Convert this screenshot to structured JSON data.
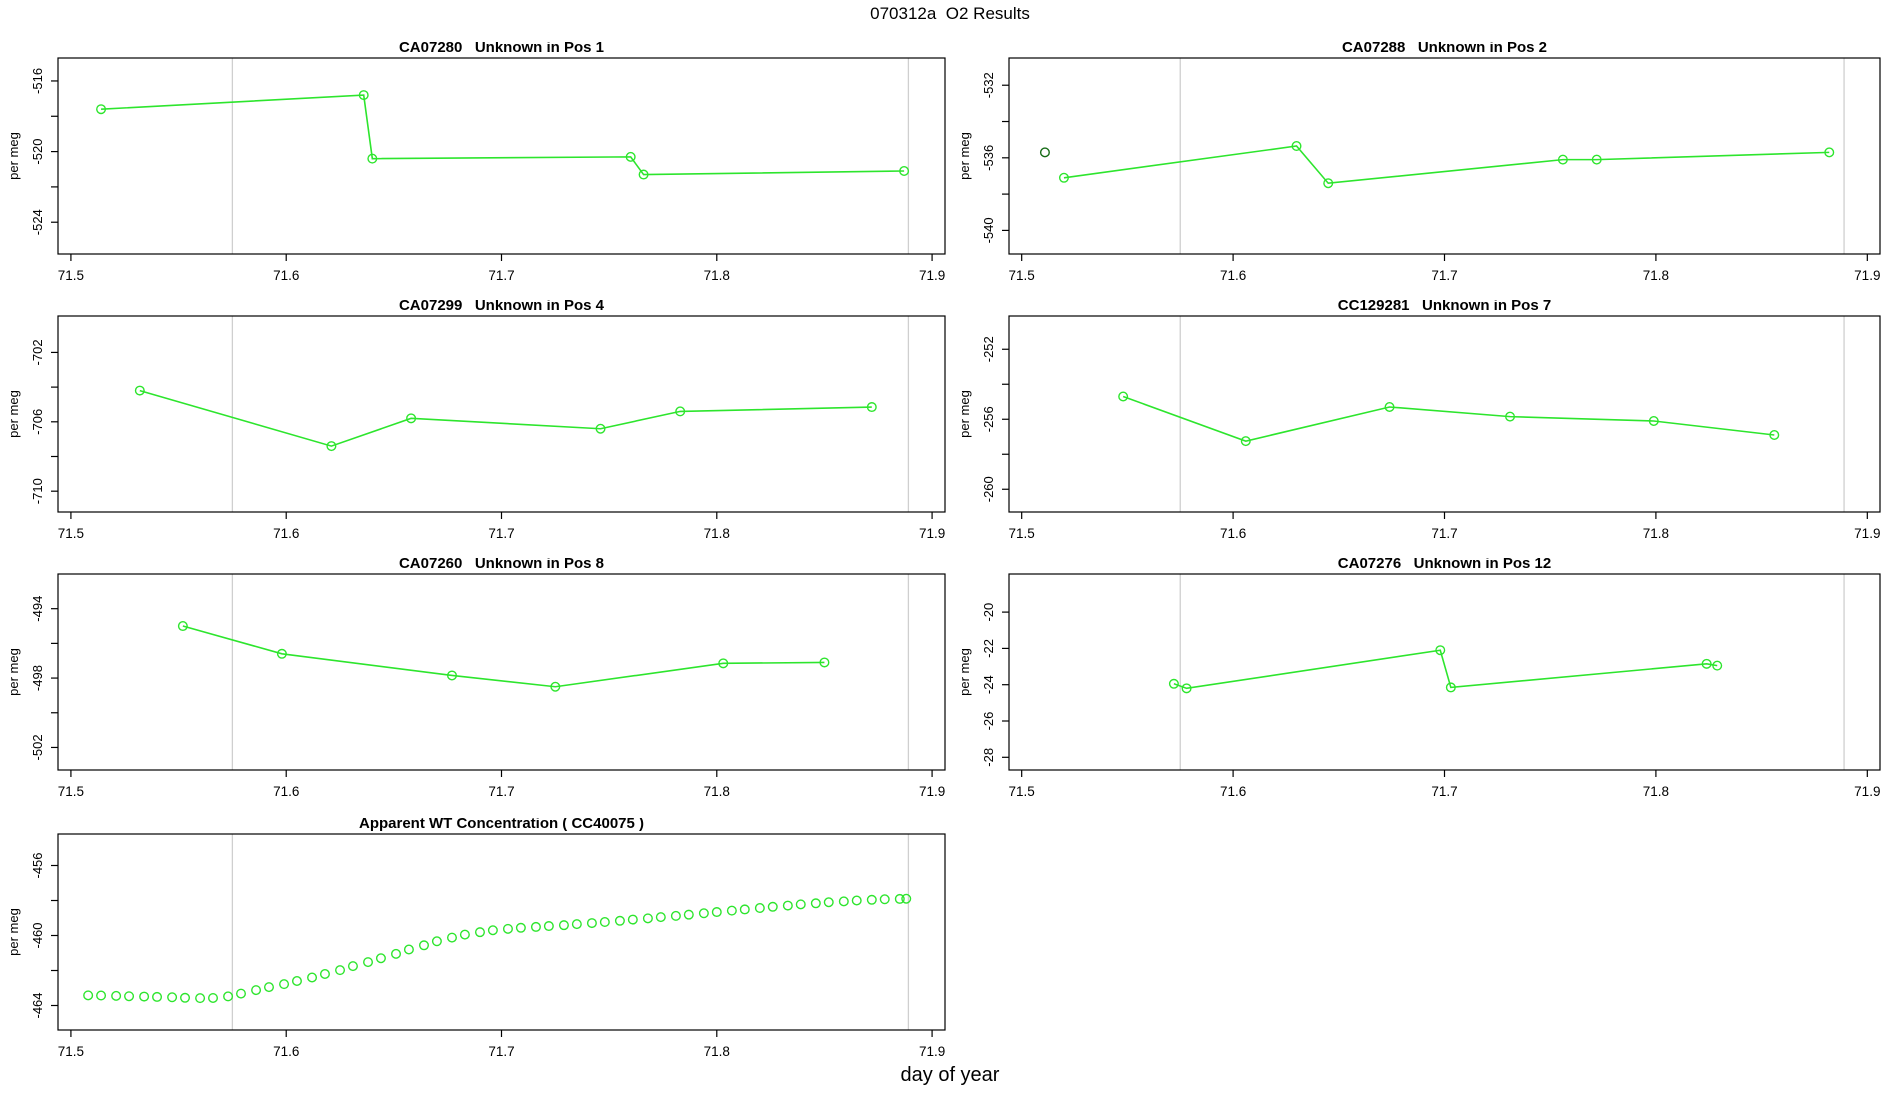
{
  "page": {
    "title": "070312a  O2 Results",
    "xlabel": "day of year",
    "background": "#ffffff"
  },
  "colors": {
    "series_green": "#2DE52D",
    "flagged_dark_green": "#166B16",
    "vline_gray": "#CFCFCF",
    "axis_black": "#000000"
  },
  "chart_data": [
    {
      "type": "line",
      "title_id": "CA07280",
      "title_desc": "Unknown in Pos 1",
      "ylabel": "per meg",
      "col": 0,
      "row": 0,
      "xlim": [
        71.494,
        71.906
      ],
      "ylim": [
        -525.8,
        -514.7
      ],
      "xticks": [
        71.5,
        71.6,
        71.7,
        71.8,
        71.9
      ],
      "xtick_labels": [
        "71.5",
        "71.6",
        "71.7",
        "71.8",
        "71.9"
      ],
      "yticks": [
        -524,
        -522,
        -520,
        -518,
        -516
      ],
      "ytick_labels": [
        "-524",
        "",
        "-520",
        "",
        "-516"
      ],
      "vlines": [
        71.575,
        71.889
      ],
      "series": [
        {
          "name": "runs",
          "color_key": "series_green",
          "line": true,
          "x": [
            71.514,
            71.636,
            71.64,
            71.76,
            71.766,
            71.887
          ],
          "y": [
            -517.6,
            -516.8,
            -520.4,
            -520.3,
            -521.3,
            -521.1
          ]
        }
      ]
    },
    {
      "type": "line",
      "title_id": "CA07288",
      "title_desc": "Unknown in Pos 2",
      "ylabel": "per meg",
      "col": 1,
      "row": 0,
      "xlim": [
        71.494,
        71.906
      ],
      "ylim": [
        -541.3,
        -530.5
      ],
      "xticks": [
        71.5,
        71.6,
        71.7,
        71.8,
        71.9
      ],
      "xtick_labels": [
        "71.5",
        "71.6",
        "71.7",
        "71.8",
        "71.9"
      ],
      "yticks": [
        -540,
        -538,
        -536,
        -534,
        -532
      ],
      "ytick_labels": [
        "-540",
        "",
        "-536",
        "",
        "-532"
      ],
      "vlines": [
        71.575,
        71.889
      ],
      "series": [
        {
          "name": "flagged",
          "color_key": "flagged_dark_green",
          "line": false,
          "x": [
            71.511
          ],
          "y": [
            -535.7
          ]
        },
        {
          "name": "runs",
          "color_key": "series_green",
          "line": true,
          "x": [
            71.52,
            71.63,
            71.645,
            71.756,
            71.772,
            71.882
          ],
          "y": [
            -537.1,
            -535.35,
            -537.4,
            -536.1,
            -536.1,
            -535.7
          ]
        }
      ]
    },
    {
      "type": "line",
      "title_id": "CA07299",
      "title_desc": "Unknown in Pos 4",
      "ylabel": "per meg",
      "col": 0,
      "row": 1,
      "xlim": [
        71.494,
        71.906
      ],
      "ylim": [
        -711.2,
        -699.9
      ],
      "xticks": [
        71.5,
        71.6,
        71.7,
        71.8,
        71.9
      ],
      "xtick_labels": [
        "71.5",
        "71.6",
        "71.7",
        "71.8",
        "71.9"
      ],
      "yticks": [
        -710,
        -708,
        -706,
        -704,
        -702
      ],
      "ytick_labels": [
        "-710",
        "",
        "-706",
        "",
        "-702"
      ],
      "vlines": [
        71.575,
        71.889
      ],
      "series": [
        {
          "name": "runs",
          "color_key": "series_green",
          "line": true,
          "x": [
            71.532,
            71.621,
            71.658,
            71.746,
            71.783,
            71.872
          ],
          "y": [
            -704.2,
            -707.4,
            -705.8,
            -706.4,
            -705.4,
            -705.15
          ]
        }
      ]
    },
    {
      "type": "line",
      "title_id": "CC129281",
      "title_desc": "Unknown in Pos 7",
      "ylabel": "per meg",
      "col": 1,
      "row": 1,
      "xlim": [
        71.494,
        71.906
      ],
      "ylim": [
        -261.3,
        -250.1
      ],
      "xticks": [
        71.5,
        71.6,
        71.7,
        71.8,
        71.9
      ],
      "xtick_labels": [
        "71.5",
        "71.6",
        "71.7",
        "71.8",
        "71.9"
      ],
      "yticks": [
        -260,
        -258,
        -256,
        -254,
        -252
      ],
      "ytick_labels": [
        "-260",
        "",
        "-256",
        "",
        "-252"
      ],
      "vlines": [
        71.575,
        71.889
      ],
      "series": [
        {
          "name": "runs",
          "color_key": "series_green",
          "line": true,
          "x": [
            71.548,
            71.606,
            71.674,
            71.731,
            71.799,
            71.856
          ],
          "y": [
            -254.7,
            -257.25,
            -255.3,
            -255.85,
            -256.1,
            -256.9
          ]
        }
      ]
    },
    {
      "type": "line",
      "title_id": "CA07260",
      "title_desc": "Unknown in Pos 8",
      "ylabel": "per meg",
      "col": 0,
      "row": 2,
      "xlim": [
        71.494,
        71.906
      ],
      "ylim": [
        -503.3,
        -492.0
      ],
      "xticks": [
        71.5,
        71.6,
        71.7,
        71.8,
        71.9
      ],
      "xtick_labels": [
        "71.5",
        "71.6",
        "71.7",
        "71.8",
        "71.9"
      ],
      "yticks": [
        -502,
        -500,
        -498,
        -496,
        -494
      ],
      "ytick_labels": [
        "-502",
        "",
        "-498",
        "",
        "-494"
      ],
      "vlines": [
        71.575,
        71.889
      ],
      "series": [
        {
          "name": "runs",
          "color_key": "series_green",
          "line": true,
          "x": [
            71.552,
            71.598,
            71.677,
            71.725,
            71.803,
            71.85
          ],
          "y": [
            -495.0,
            -496.6,
            -497.85,
            -498.5,
            -497.15,
            -497.1
          ]
        }
      ]
    },
    {
      "type": "line",
      "title_id": "CA07276",
      "title_desc": "Unknown in Pos 12",
      "ylabel": "per meg",
      "col": 1,
      "row": 2,
      "xlim": [
        71.494,
        71.906
      ],
      "ylim": [
        -28.7,
        -17.9
      ],
      "xticks": [
        71.5,
        71.6,
        71.7,
        71.8,
        71.9
      ],
      "xtick_labels": [
        "71.5",
        "71.6",
        "71.7",
        "71.8",
        "71.9"
      ],
      "yticks": [
        -28,
        -26,
        -24,
        -22,
        -20
      ],
      "ytick_labels": [
        "-28",
        "-26",
        "-24",
        "-22",
        "-20"
      ],
      "vlines": [
        71.575,
        71.889
      ],
      "series": [
        {
          "name": "runs",
          "color_key": "series_green",
          "line": true,
          "x": [
            71.572,
            71.578,
            71.698,
            71.703,
            71.824,
            71.829
          ],
          "y": [
            -23.95,
            -24.2,
            -22.1,
            -24.15,
            -22.85,
            -22.95
          ]
        }
      ]
    },
    {
      "type": "scatter",
      "title_id": "",
      "title_desc": "Apparent WT Concentration ( CC40075 )",
      "ylabel": "per meg",
      "col": 0,
      "row": 3,
      "xlim": [
        71.494,
        71.906
      ],
      "ylim": [
        -465.4,
        -454.2
      ],
      "xticks": [
        71.5,
        71.6,
        71.7,
        71.8,
        71.9
      ],
      "xtick_labels": [
        "71.5",
        "71.6",
        "71.7",
        "71.8",
        "71.9"
      ],
      "yticks": [
        -464,
        -462,
        -460,
        -458,
        -456
      ],
      "ytick_labels": [
        "-464",
        "",
        "-460",
        "",
        "-456"
      ],
      "vlines": [
        71.575,
        71.889
      ],
      "series": [
        {
          "name": "wt-concentration",
          "color_key": "series_green",
          "line": false,
          "x": [
            71.508,
            71.514,
            71.521,
            71.527,
            71.534,
            71.54,
            71.547,
            71.553,
            71.56,
            71.566,
            71.573,
            71.579,
            71.586,
            71.592,
            71.599,
            71.605,
            71.612,
            71.618,
            71.625,
            71.631,
            71.638,
            71.644,
            71.651,
            71.657,
            71.664,
            71.67,
            71.677,
            71.683,
            71.69,
            71.696,
            71.703,
            71.709,
            71.716,
            71.722,
            71.729,
            71.735,
            71.742,
            71.748,
            71.755,
            71.761,
            71.768,
            71.774,
            71.781,
            71.787,
            71.794,
            71.8,
            71.807,
            71.813,
            71.82,
            71.826,
            71.833,
            71.839,
            71.846,
            71.852,
            71.859,
            71.865,
            71.872,
            71.878,
            71.885,
            71.888
          ],
          "y": [
            -463.42,
            -463.43,
            -463.45,
            -463.47,
            -463.49,
            -463.51,
            -463.53,
            -463.56,
            -463.58,
            -463.57,
            -463.48,
            -463.32,
            -463.12,
            -462.95,
            -462.78,
            -462.6,
            -462.4,
            -462.2,
            -461.98,
            -461.75,
            -461.52,
            -461.3,
            -461.05,
            -460.8,
            -460.56,
            -460.33,
            -460.12,
            -459.95,
            -459.81,
            -459.7,
            -459.62,
            -459.56,
            -459.51,
            -459.46,
            -459.41,
            -459.35,
            -459.29,
            -459.23,
            -459.16,
            -459.09,
            -459.02,
            -458.95,
            -458.88,
            -458.81,
            -458.73,
            -458.66,
            -458.58,
            -458.51,
            -458.43,
            -458.36,
            -458.29,
            -458.22,
            -458.16,
            -458.1,
            -458.05,
            -458.0,
            -457.96,
            -457.93,
            -457.91,
            -457.9
          ]
        }
      ]
    }
  ]
}
